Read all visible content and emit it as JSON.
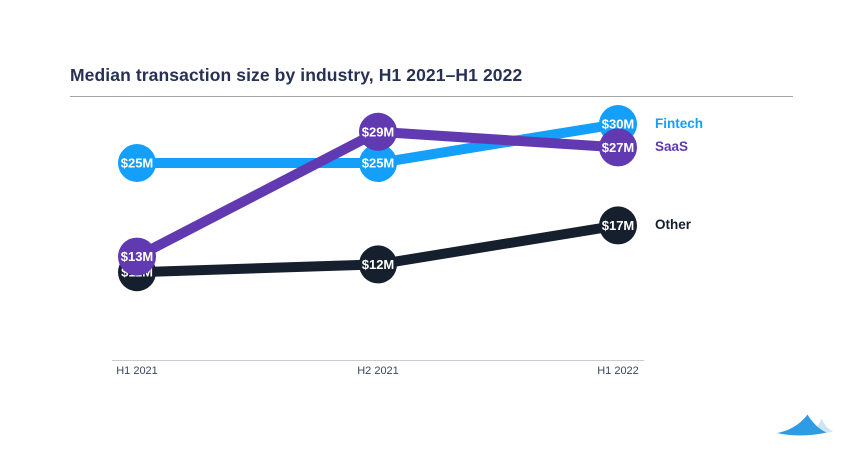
{
  "header": {
    "title": "Median transaction size by industry, H1 2021–H1 2022"
  },
  "chart_data": {
    "type": "line",
    "title": "Median transaction size by industry, H1 2021–H1 2022",
    "categories": [
      "H1 2021",
      "H2 2021",
      "H1 2022"
    ],
    "unit": "$M",
    "series": [
      {
        "name": "Other",
        "color": "#161f2e",
        "values": [
          11,
          12,
          17
        ],
        "point_labels": [
          "$11M",
          "$12M",
          "$17M"
        ]
      },
      {
        "name": "Fintech",
        "color": "#149ffb",
        "values": [
          25,
          25,
          30
        ],
        "point_labels": [
          "$25M",
          "$25M",
          "$30M"
        ]
      },
      {
        "name": "SaaS",
        "color": "#6139b1",
        "values": [
          13,
          29,
          27
        ],
        "point_labels": [
          "$13M",
          "$29M",
          "$27M"
        ]
      }
    ],
    "legend": [
      "Fintech",
      "SaaS",
      "Other"
    ],
    "legend_position": "right-of-last-point",
    "ylim": [
      8,
      33
    ],
    "grid": false,
    "xlabel": "",
    "ylabel": ""
  },
  "colors": {
    "background": "#ffffff",
    "title_text": "#273156",
    "title_rule": "#a6a6a6",
    "axis_text": "#39455f",
    "axis_line": "#c9ccd1",
    "point_label_text": "#ffffff"
  },
  "footer": {
    "logo_name": "mountain-logo",
    "logo_primary_color": "#2e9be5",
    "logo_secondary_color": "#cde4f5"
  }
}
